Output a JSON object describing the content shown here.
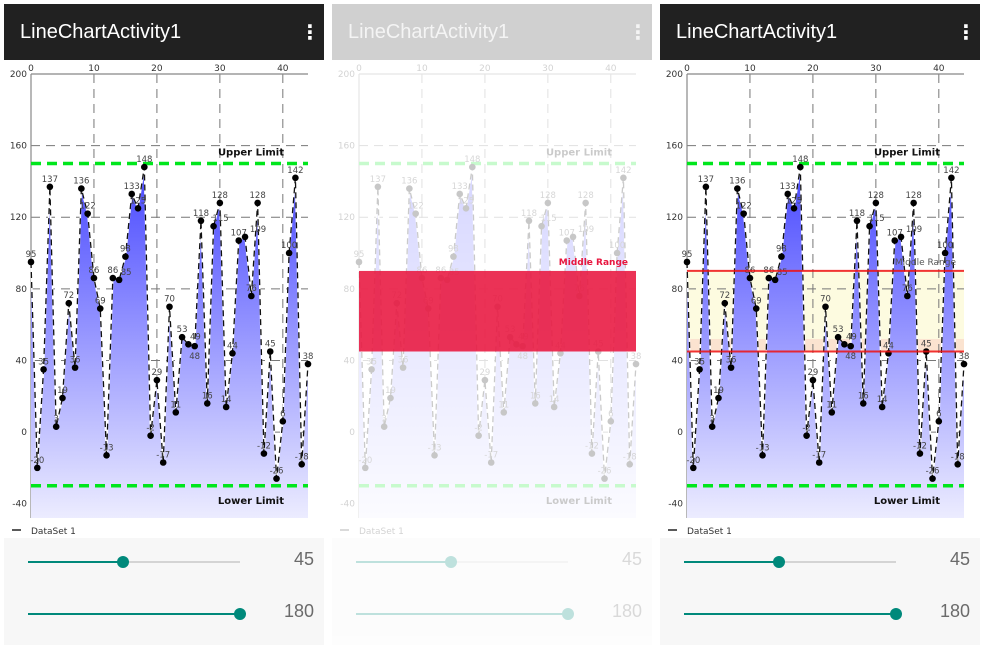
{
  "app": {
    "title": "LineChartActivity1",
    "menu_icon": "overflow-menu-icon"
  },
  "chart_data": {
    "type": "line",
    "x": [
      0,
      1,
      2,
      3,
      4,
      5,
      6,
      7,
      8,
      9,
      10,
      11,
      12,
      13,
      14,
      15,
      16,
      17,
      18,
      19,
      20,
      21,
      22,
      23,
      24,
      25,
      26,
      27,
      28,
      29,
      30,
      31,
      32,
      33,
      34,
      35,
      36,
      37,
      38,
      39,
      40,
      41,
      42,
      43,
      44
    ],
    "series": [
      {
        "name": "DataSet 1",
        "values": [
          95,
          -20,
          35,
          137,
          3,
          19,
          72,
          36,
          136,
          122,
          86,
          69,
          -13,
          86,
          85,
          98,
          133,
          125,
          148,
          -2,
          29,
          -17,
          70,
          11,
          53,
          49,
          48,
          118,
          16,
          115,
          128,
          14,
          44,
          107,
          109,
          76,
          128,
          -12,
          45,
          -26,
          6,
          100,
          142,
          -18,
          38
        ]
      }
    ],
    "xticks": [
      0,
      10,
      20,
      30,
      40
    ],
    "yticks": [
      -40,
      0,
      40,
      80,
      120,
      160,
      200
    ],
    "xlim": [
      0,
      44
    ],
    "ylim": [
      -48,
      200
    ],
    "grid": true,
    "limit_lines": [
      {
        "label": "Upper Limit",
        "value": 150
      },
      {
        "label": "Lower Limit",
        "value": -30
      }
    ],
    "middle_range": {
      "label": "Middle Range",
      "from": 45,
      "to": 90
    },
    "legend": "bottom-left",
    "colors": {
      "fill_top": "#4848ff",
      "fill_bottom": "#ececff",
      "limit": "#00e61c",
      "range_line": "#ee1111",
      "range_band": "#fdfbe0",
      "range_highlight": "#e8163f"
    }
  },
  "sliders": [
    {
      "value": "45",
      "fraction": 0.45
    },
    {
      "value": "180",
      "fraction": 1.0
    }
  ]
}
